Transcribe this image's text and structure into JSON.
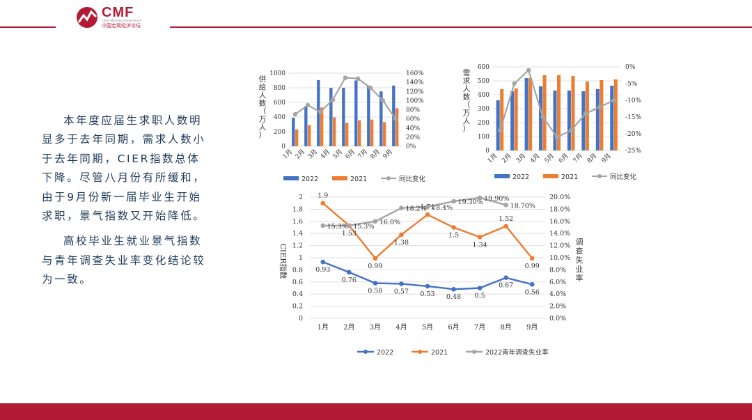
{
  "header": {
    "logo_text": "CMF",
    "logo_subtitle": "China Macroeconomy Forum",
    "logo_cn": "中国宏观经济论坛"
  },
  "text": {
    "p1": "本年度应届生求职人数明显多于去年同期，需求人数小于去年同期，CIER指数总体下降。尽管八月份有所缓和，由于9月份新一届毕业生开始求职，景气指数又开始降低。",
    "p2": "高校毕业生就业景气指数与青年调查失业率变化结论较为一致。"
  },
  "colors": {
    "brand": "#b31b34",
    "blue": "#4472c4",
    "orange": "#ed7d31",
    "gray": "#a5a5a5",
    "text": "#1f3a5a"
  },
  "chart_data": [
    {
      "type": "bar",
      "categories": [
        "1月",
        "2月",
        "3月",
        "4月",
        "5月",
        "6月",
        "7月",
        "8月",
        "9月"
      ],
      "series": [
        {
          "name": "2022",
          "values": [
            390,
            550,
            905,
            800,
            800,
            900,
            830,
            750,
            830
          ]
        },
        {
          "name": "2021",
          "values": [
            230,
            290,
            530,
            395,
            320,
            355,
            365,
            330,
            520
          ]
        }
      ],
      "line_series": {
        "name": "同比变化",
        "axis": "right",
        "values": [
          70,
          90,
          75,
          102,
          150,
          148,
          128,
          100,
          60
        ]
      },
      "ylabel": "供给人数（万人）",
      "ylim": [
        0,
        1000
      ],
      "yticks": [
        "0",
        "200",
        "400",
        "600",
        "800",
        "1000"
      ],
      "y2lim": [
        0,
        160
      ],
      "y2ticks": [
        "0%",
        "20%",
        "40%",
        "60%",
        "80%",
        "100%",
        "120%",
        "140%",
        "160%"
      ],
      "legend": [
        "2022",
        "2021",
        "同比变化"
      ]
    },
    {
      "type": "bar",
      "categories": [
        "1月",
        "2月",
        "3月",
        "4月",
        "5月",
        "6月",
        "7月",
        "8月",
        "9月"
      ],
      "series": [
        {
          "name": "2022",
          "values": [
            360,
            425,
            520,
            460,
            430,
            430,
            425,
            440,
            465
          ]
        },
        {
          "name": "2021",
          "values": [
            440,
            445,
            520,
            540,
            540,
            535,
            495,
            505,
            510
          ]
        }
      ],
      "line_series": {
        "name": "同比变化",
        "axis": "right",
        "values": [
          -19,
          -5,
          -1,
          -15,
          -21,
          -19,
          -14,
          -12,
          -10
        ]
      },
      "ylabel": "需求人数（万人）",
      "ylim": [
        0,
        600
      ],
      "yticks": [
        "0",
        "100",
        "200",
        "300",
        "400",
        "500",
        "600"
      ],
      "y2lim": [
        -25,
        0
      ],
      "y2ticks": [
        "-25%",
        "-20%",
        "-15%",
        "-10%",
        "-5%",
        "0%"
      ],
      "legend": [
        "2022",
        "2021",
        "同比变化"
      ]
    },
    {
      "type": "line",
      "categories": [
        "1月",
        "2月",
        "3月",
        "4月",
        "5月",
        "6月",
        "7月",
        "8月",
        "9月"
      ],
      "series": [
        {
          "name": "2022",
          "axis": "left",
          "values": [
            0.93,
            0.76,
            0.58,
            0.57,
            0.53,
            0.48,
            0.5,
            0.67,
            0.56
          ],
          "labels": [
            "0.93",
            "0.76",
            "0.58",
            "0.57",
            "0.53",
            "0.48",
            "0.5",
            "0.67",
            "0.56"
          ]
        },
        {
          "name": "2021",
          "axis": "left",
          "values": [
            1.9,
            1.53,
            0.99,
            1.38,
            1.71,
            1.5,
            1.34,
            1.52,
            0.99
          ],
          "labels": [
            "1.9",
            "1.53",
            "0.99",
            "1.38",
            "1.71",
            "1.5",
            "1.34",
            "1.52",
            "0.99"
          ]
        },
        {
          "name": "2022青年调查失业率",
          "axis": "right",
          "values": [
            15.3,
            15.3,
            16.0,
            18.2,
            18.4,
            19.3,
            19.9,
            18.7,
            null
          ],
          "labels": [
            "15.3%",
            "15.3%",
            "16.0%",
            "18.2%",
            "18.4%",
            "19.30%",
            "19.90%",
            "18.70%",
            ""
          ]
        }
      ],
      "ylabel": "CIER指数",
      "y2label": "调查失业率",
      "ylim": [
        0,
        2
      ],
      "yticks": [
        "0",
        "0.2",
        "0.4",
        "0.6",
        "0.8",
        "1",
        "1.2",
        "1.4",
        "1.6",
        "1.8",
        "2"
      ],
      "y2lim": [
        0,
        20
      ],
      "y2ticks": [
        "0.0%",
        "2.0%",
        "4.0%",
        "6.0%",
        "8.0%",
        "10.0%",
        "12.0%",
        "14.0%",
        "16.0%",
        "18.0%",
        "20.0%"
      ],
      "legend": [
        "2022",
        "2021",
        "2022青年调查失业率"
      ]
    }
  ]
}
